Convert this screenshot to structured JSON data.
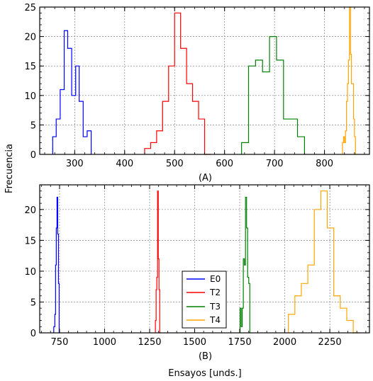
{
  "figure": {
    "ylabel": "Frecuencia",
    "xlabel": "Ensayos [unds.]"
  },
  "chart_data": [
    {
      "type": "histogram",
      "panel_label": "(A)",
      "xlim": [
        230,
        890
      ],
      "ylim": [
        0,
        25
      ],
      "xticks": [
        300,
        400,
        500,
        600,
        700,
        800
      ],
      "yticks": [
        0,
        5,
        10,
        15,
        20,
        25
      ],
      "grid": true,
      "series": [
        {
          "color": "#0000ff",
          "edges": [
            256,
            263,
            271,
            279,
            286,
            294,
            302,
            309,
            317,
            325,
            333
          ],
          "counts": [
            3,
            6,
            11,
            21,
            18,
            10,
            15,
            9,
            3,
            4
          ]
        },
        {
          "color": "#ff0000",
          "edges": [
            440,
            452,
            464,
            476,
            488,
            500,
            512,
            524,
            536,
            548,
            560,
            572
          ],
          "counts": [
            1,
            2,
            4,
            9,
            15,
            24,
            18,
            12,
            9,
            6,
            0
          ]
        },
        {
          "color": "#008000",
          "edges": [
            634,
            648,
            662,
            676,
            690,
            704,
            718,
            732,
            746,
            760
          ],
          "counts": [
            2,
            15,
            16,
            14,
            20,
            16,
            6,
            6,
            3
          ]
        },
        {
          "color": "#ffa500",
          "edges": [
            836,
            838,
            840,
            842,
            844,
            846,
            848,
            850,
            852,
            854,
            856,
            858,
            860,
            862,
            864
          ],
          "counts": [
            2,
            3,
            2,
            4,
            9,
            12,
            16,
            25,
            17,
            12,
            12,
            6,
            3,
            0
          ]
        }
      ]
    },
    {
      "type": "histogram",
      "panel_label": "(B)",
      "xlim": [
        640,
        2470
      ],
      "ylim": [
        0,
        24
      ],
      "xticks": [
        750,
        1000,
        1250,
        1500,
        1750,
        2000,
        2250
      ],
      "yticks": [
        0,
        5,
        10,
        15,
        20
      ],
      "grid": true,
      "legend": {
        "position": "center",
        "entries": [
          "E0",
          "T2",
          "T3",
          "T4"
        ]
      },
      "series": [
        {
          "name": "E0",
          "color": "#0000ff",
          "edges": [
            718,
            724,
            728,
            732,
            736,
            740,
            744,
            748,
            752
          ],
          "counts": [
            1,
            3,
            11,
            17,
            22,
            16,
            8,
            0
          ]
        },
        {
          "name": "T2",
          "color": "#ff0000",
          "edges": [
            1282,
            1286,
            1290,
            1294,
            1298,
            1302,
            1306,
            1310
          ],
          "counts": [
            2,
            7,
            9,
            23,
            12,
            7,
            0
          ]
        },
        {
          "name": "T3",
          "color": "#008000",
          "edges": [
            1752,
            1758,
            1764,
            1770,
            1776,
            1782,
            1788,
            1794,
            1800,
            1806
          ],
          "counts": [
            4,
            1,
            4,
            12,
            11,
            22,
            17,
            9,
            8
          ]
        },
        {
          "name": "T4",
          "color": "#ffa500",
          "edges": [
            2020,
            2056,
            2092,
            2128,
            2164,
            2200,
            2236,
            2272,
            2308,
            2344,
            2380,
            2416
          ],
          "counts": [
            3,
            6,
            8,
            11,
            20,
            23,
            17,
            6,
            4,
            2,
            0
          ]
        }
      ]
    }
  ]
}
